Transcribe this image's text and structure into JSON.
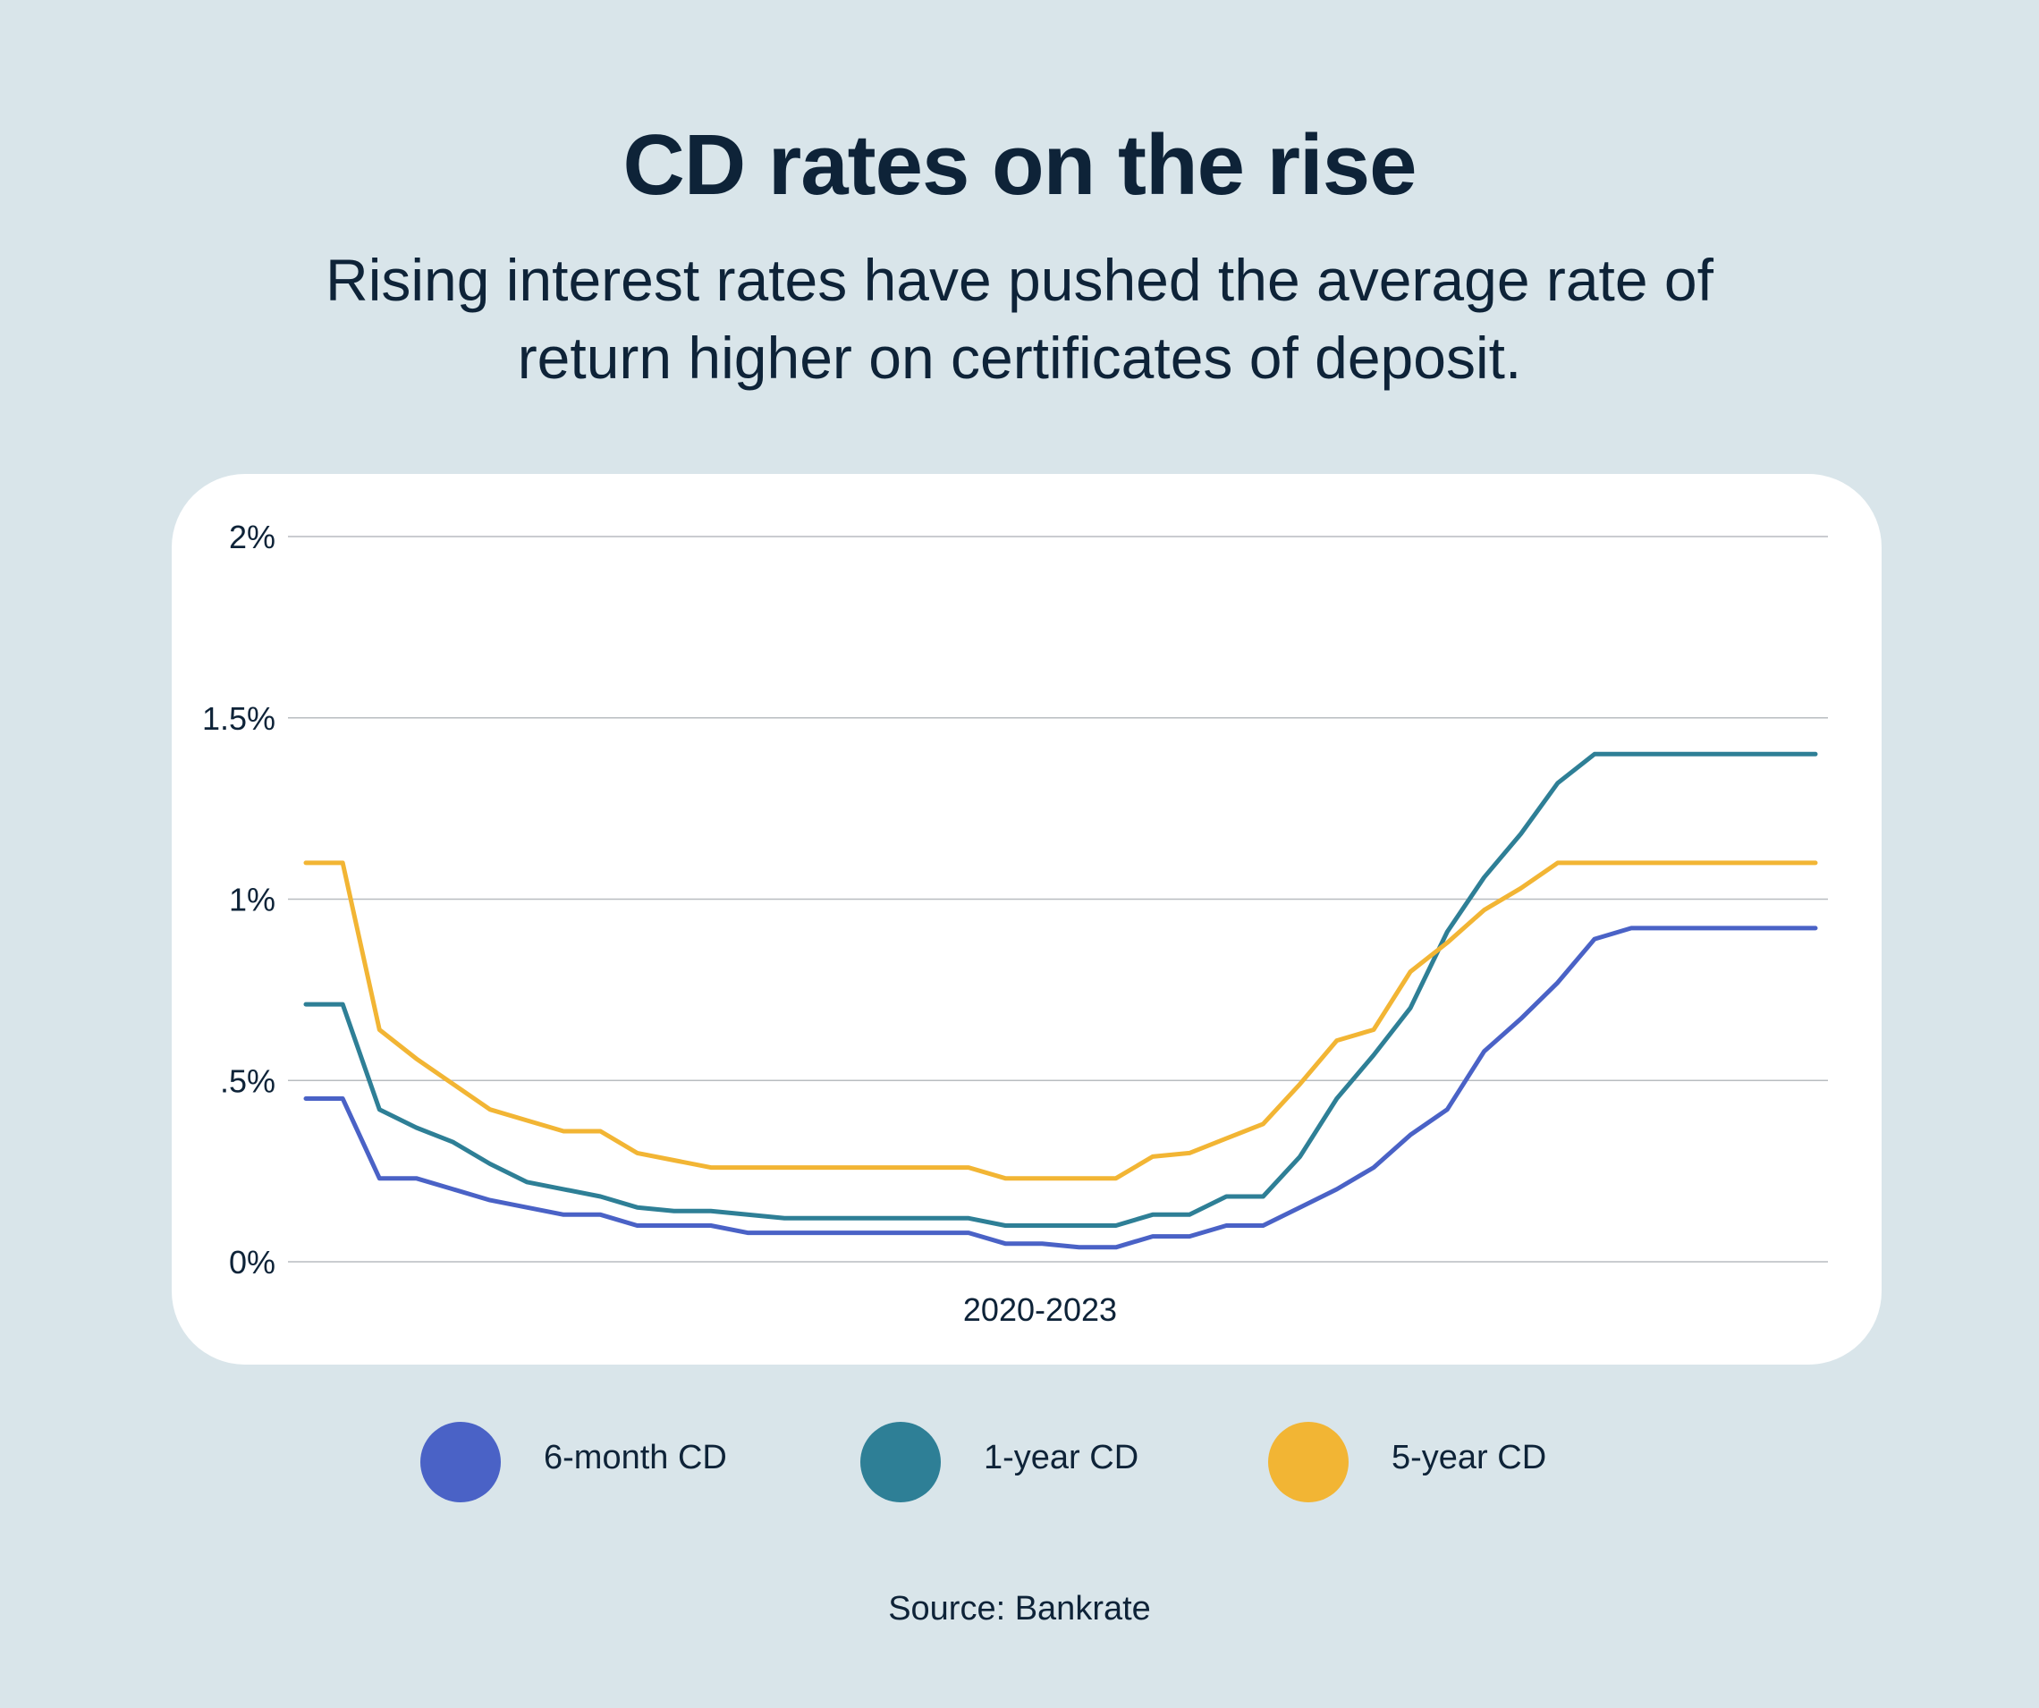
{
  "chart_data": {
    "type": "line",
    "title": "CD rates on the rise",
    "subtitle": "Rising interest rates have pushed the average rate of return higher on certificates of deposit.",
    "xlabel": "2020-2023",
    "ylabel": "",
    "yticks": [
      {
        "value": 0,
        "label": "0%"
      },
      {
        "value": 0.5,
        "label": ".5%"
      },
      {
        "value": 1,
        "label": "1%"
      },
      {
        "value": 1.5,
        "label": "1.5%"
      },
      {
        "value": 2,
        "label": "2%"
      }
    ],
    "ylim": [
      0,
      2
    ],
    "x": [
      0,
      1,
      2,
      3,
      4,
      5,
      6,
      7,
      8,
      9,
      10,
      11,
      12,
      13,
      14,
      15,
      16,
      17,
      18,
      19,
      20,
      21,
      22,
      23,
      24,
      25,
      26,
      27,
      28,
      29,
      30,
      31,
      32,
      33,
      34,
      35,
      36,
      37,
      38,
      39,
      40,
      41
    ],
    "series": [
      {
        "name": "6-month CD",
        "color": "#4a62c6",
        "values": [
          0.45,
          0.45,
          0.23,
          0.23,
          0.2,
          0.17,
          0.15,
          0.13,
          0.13,
          0.1,
          0.1,
          0.1,
          0.08,
          0.08,
          0.08,
          0.08,
          0.08,
          0.08,
          0.08,
          0.05,
          0.05,
          0.04,
          0.04,
          0.07,
          0.07,
          0.1,
          0.1,
          0.15,
          0.2,
          0.26,
          0.35,
          0.42,
          0.58,
          0.67,
          0.77,
          0.89,
          0.92,
          0.92,
          0.92,
          0.92,
          0.92,
          0.92
        ]
      },
      {
        "name": "1-year CD",
        "color": "#2e7f96",
        "values": [
          0.71,
          0.71,
          0.42,
          0.37,
          0.33,
          0.27,
          0.22,
          0.2,
          0.18,
          0.15,
          0.14,
          0.14,
          0.13,
          0.12,
          0.12,
          0.12,
          0.12,
          0.12,
          0.12,
          0.1,
          0.1,
          0.1,
          0.1,
          0.13,
          0.13,
          0.18,
          0.18,
          0.29,
          0.45,
          0.57,
          0.7,
          0.91,
          1.06,
          1.18,
          1.32,
          1.4,
          1.4,
          1.4,
          1.4,
          1.4,
          1.4,
          1.4
        ]
      },
      {
        "name": "5-year CD",
        "color": "#f2b534",
        "values": [
          1.1,
          1.1,
          0.64,
          0.56,
          0.49,
          0.42,
          0.39,
          0.36,
          0.36,
          0.3,
          0.28,
          0.26,
          0.26,
          0.26,
          0.26,
          0.26,
          0.26,
          0.26,
          0.26,
          0.23,
          0.23,
          0.23,
          0.23,
          0.29,
          0.3,
          0.34,
          0.38,
          0.49,
          0.61,
          0.64,
          0.8,
          0.88,
          0.97,
          1.03,
          1.1,
          1.1,
          1.1,
          1.1,
          1.1,
          1.1,
          1.1,
          1.1
        ]
      }
    ],
    "grid": true,
    "legend_position": "bottom"
  },
  "source": "Source: Bankrate"
}
